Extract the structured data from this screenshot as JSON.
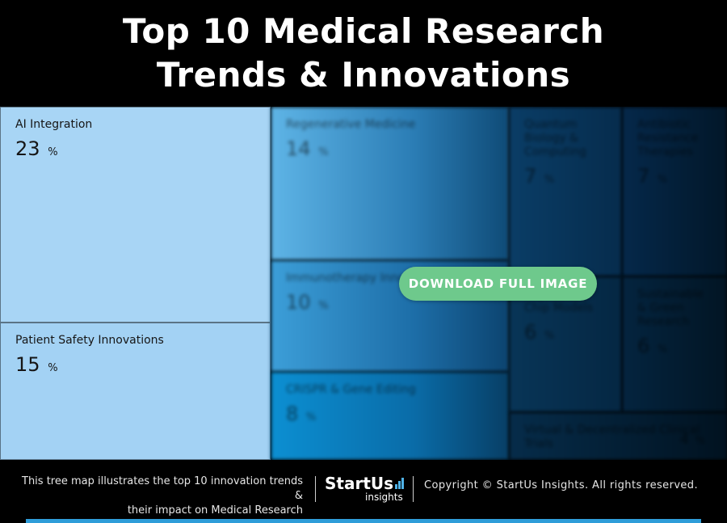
{
  "header": {
    "title_line1": "Top 10 Medical Research",
    "title_line2": "Trends & Innovations"
  },
  "treemap": {
    "tiles": [
      {
        "label": "AI Integration",
        "value": "23",
        "unit": "%"
      },
      {
        "label": "Patient Safety Innovations",
        "value": "15",
        "unit": "%"
      },
      {
        "label": "Regenerative Medicine",
        "value": "14",
        "unit": "%"
      },
      {
        "label": "Immunotherapy Innovations",
        "value": "10",
        "unit": "%"
      },
      {
        "label": "CRISPR & Gene Editing",
        "value": "8",
        "unit": "%"
      },
      {
        "label": "Quantum Biology & Computing",
        "value": "7",
        "unit": "%"
      },
      {
        "label": "Antibiotic Resistance Therapies",
        "value": "7",
        "unit": "%"
      },
      {
        "label": "Organ-on-Chip Models",
        "value": "6",
        "unit": "%"
      },
      {
        "label": "Sustainable & Green Research",
        "value": "6",
        "unit": "%"
      },
      {
        "label": "Virtual & Decentralized Clinical Trials",
        "value": "4",
        "unit": "%"
      }
    ]
  },
  "download_button": {
    "label": "DOWNLOAD FULL IMAGE"
  },
  "footer": {
    "desc_line1": "This tree map illustrates the top 10 innovation trends &",
    "desc_line2": "their impact on Medical Research",
    "logo_brand": "StartUs",
    "logo_sub": "insights",
    "copyright": "Copyright © StartUs Insights. All rights reserved."
  },
  "colors": {
    "accent_button": "#6ec98c",
    "tile_light": "#a8d5f5",
    "footer_bar": "#2f9dd9"
  }
}
